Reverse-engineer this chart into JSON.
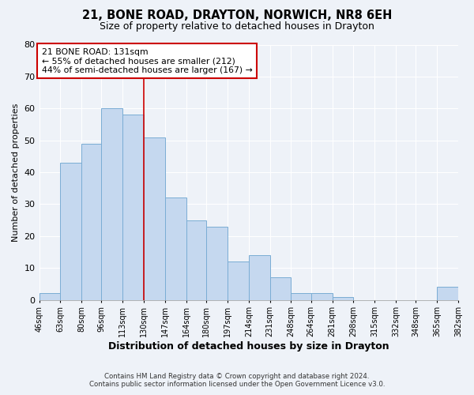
{
  "title": "21, BONE ROAD, DRAYTON, NORWICH, NR8 6EH",
  "subtitle": "Size of property relative to detached houses in Drayton",
  "xlabel": "Distribution of detached houses by size in Drayton",
  "ylabel": "Number of detached properties",
  "bin_edges": [
    46,
    63,
    80,
    96,
    113,
    130,
    147,
    164,
    180,
    197,
    214,
    231,
    248,
    264,
    281,
    298,
    315,
    332,
    348,
    365,
    382
  ],
  "counts": [
    2,
    43,
    49,
    60,
    58,
    51,
    32,
    25,
    23,
    12,
    14,
    7,
    2,
    2,
    1,
    0,
    0,
    0,
    0,
    4
  ],
  "tick_labels": [
    "46sqm",
    "63sqm",
    "80sqm",
    "96sqm",
    "113sqm",
    "130sqm",
    "147sqm",
    "164sqm",
    "180sqm",
    "197sqm",
    "214sqm",
    "231sqm",
    "248sqm",
    "264sqm",
    "281sqm",
    "298sqm",
    "315sqm",
    "332sqm",
    "348sqm",
    "365sqm",
    "382sqm"
  ],
  "bar_color": "#c5d8ef",
  "bar_edge_color": "#7aadd4",
  "vline_x": 130,
  "vline_color": "#cc0000",
  "annotation_title": "21 BONE ROAD: 131sqm",
  "annotation_line1": "← 55% of detached houses are smaller (212)",
  "annotation_line2": "44% of semi-detached houses are larger (167) →",
  "annotation_box_color": "#cc0000",
  "ylim": [
    0,
    80
  ],
  "yticks": [
    0,
    10,
    20,
    30,
    40,
    50,
    60,
    70,
    80
  ],
  "footer1": "Contains HM Land Registry data © Crown copyright and database right 2024.",
  "footer2": "Contains public sector information licensed under the Open Government Licence v3.0.",
  "bg_color": "#eef2f8",
  "plot_bg_color": "#eef2f8",
  "grid_color": "#ffffff",
  "title_fontsize": 10.5,
  "subtitle_fontsize": 9
}
